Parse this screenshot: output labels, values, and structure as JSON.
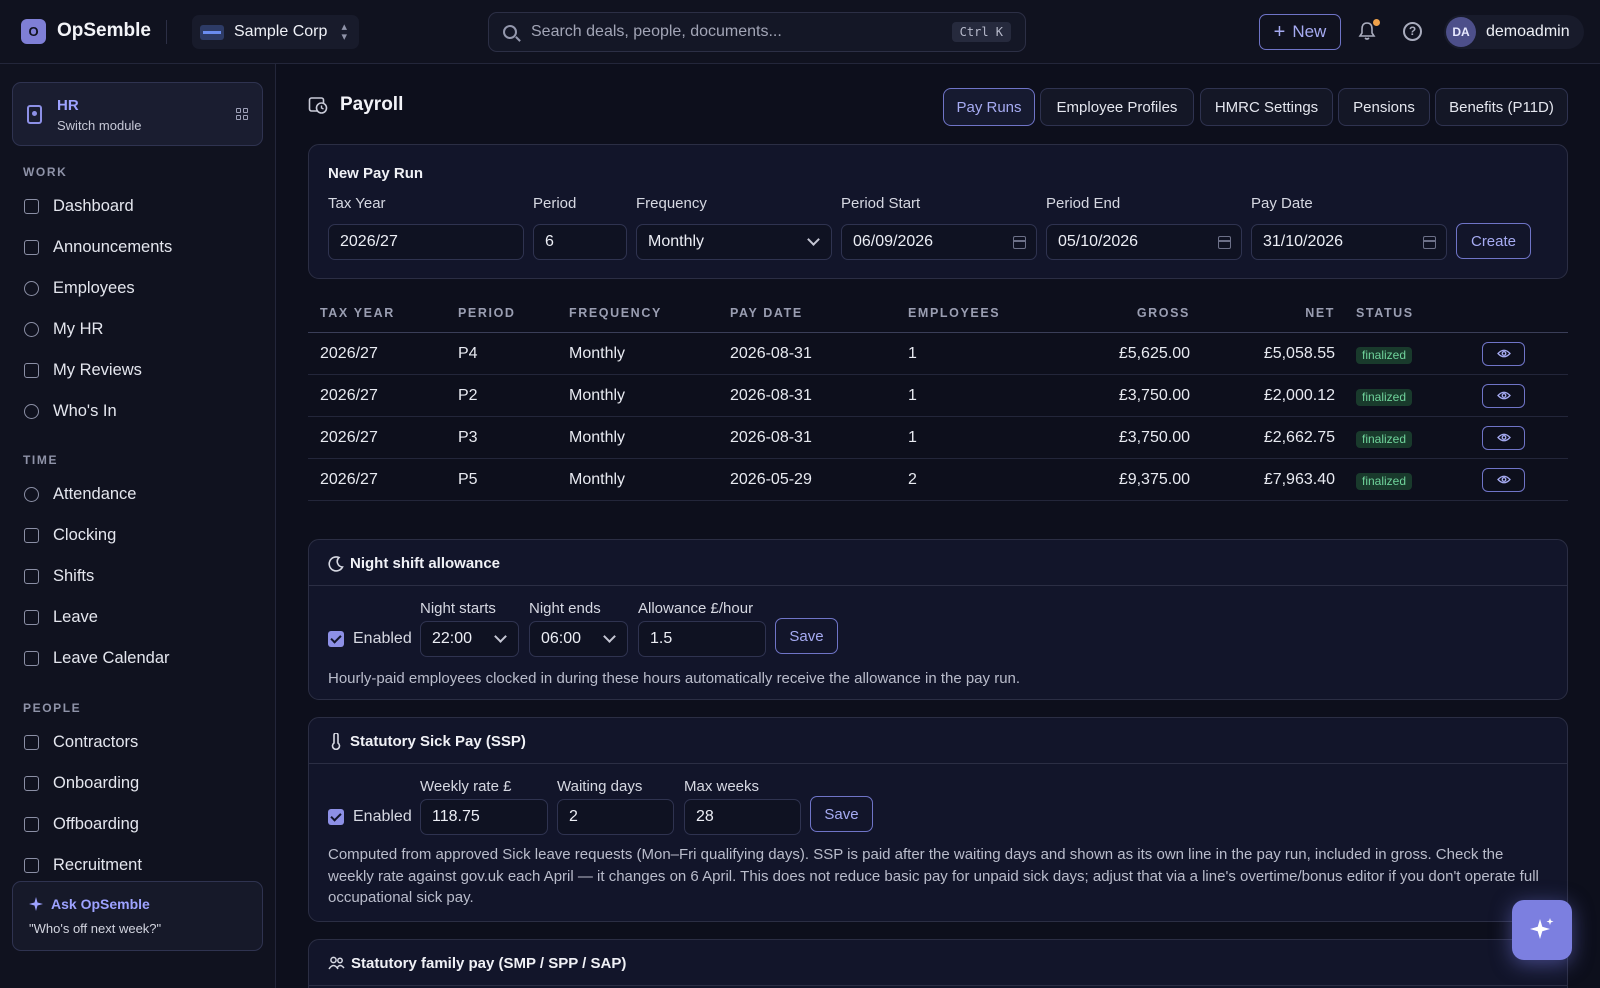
{
  "app": {
    "name": "OpSemble",
    "logo_letter": "O"
  },
  "org": {
    "name": "Sample Corp"
  },
  "search": {
    "placeholder": "Search deals, people, documents...",
    "shortcut": "Ctrl K"
  },
  "header": {
    "new_label": "New",
    "user_initials": "DA",
    "user_name": "demoadmin"
  },
  "module": {
    "title": "HR",
    "subtitle": "Switch module"
  },
  "sidebar": {
    "sections": [
      {
        "label": "WORK",
        "items": [
          "Dashboard",
          "Announcements",
          "Employees",
          "My HR",
          "My Reviews",
          "Who's In"
        ]
      },
      {
        "label": "TIME",
        "items": [
          "Attendance",
          "Clocking",
          "Shifts",
          "Leave",
          "Leave Calendar"
        ]
      },
      {
        "label": "PEOPLE",
        "items": [
          "Contractors",
          "Onboarding",
          "Offboarding",
          "Recruitment"
        ]
      }
    ]
  },
  "ask": {
    "title": "Ask OpSemble",
    "prompt": "\"Who's off next week?\""
  },
  "page": {
    "title": "Payroll"
  },
  "tabs": [
    {
      "label": "Pay Runs",
      "active": true
    },
    {
      "label": "Employee Profiles",
      "active": false
    },
    {
      "label": "HMRC Settings",
      "active": false
    },
    {
      "label": "Pensions",
      "active": false
    },
    {
      "label": "Benefits (P11D)",
      "active": false
    }
  ],
  "new_pay_run": {
    "title": "New Pay Run",
    "fields": {
      "tax_year": {
        "label": "Tax Year",
        "value": "2026/27"
      },
      "period": {
        "label": "Period",
        "value": "6"
      },
      "frequency": {
        "label": "Frequency",
        "value": "Monthly"
      },
      "period_start": {
        "label": "Period Start",
        "value": "06/09/2026"
      },
      "period_end": {
        "label": "Period End",
        "value": "05/10/2026"
      },
      "pay_date": {
        "label": "Pay Date",
        "value": "31/10/2026"
      }
    },
    "create_label": "Create"
  },
  "pay_runs_table": {
    "columns": [
      "TAX YEAR",
      "PERIOD",
      "FREQUENCY",
      "PAY DATE",
      "EMPLOYEES",
      "GROSS",
      "NET",
      "STATUS"
    ],
    "rows": [
      {
        "tax_year": "2026/27",
        "period": "P4",
        "frequency": "Monthly",
        "pay_date": "2026-08-31",
        "employees": "1",
        "gross": "£5,625.00",
        "net": "£5,058.55",
        "status": "finalized"
      },
      {
        "tax_year": "2026/27",
        "period": "P2",
        "frequency": "Monthly",
        "pay_date": "2026-08-31",
        "employees": "1",
        "gross": "£3,750.00",
        "net": "£2,000.12",
        "status": "finalized"
      },
      {
        "tax_year": "2026/27",
        "period": "P3",
        "frequency": "Monthly",
        "pay_date": "2026-08-31",
        "employees": "1",
        "gross": "£3,750.00",
        "net": "£2,662.75",
        "status": "finalized"
      },
      {
        "tax_year": "2026/27",
        "period": "P5",
        "frequency": "Monthly",
        "pay_date": "2026-05-29",
        "employees": "2",
        "gross": "£9,375.00",
        "net": "£7,963.40",
        "status": "finalized"
      }
    ]
  },
  "night_shift": {
    "title": "Night shift allowance",
    "enabled_label": "Enabled",
    "night_starts": {
      "label": "Night starts",
      "value": "22:00"
    },
    "night_ends": {
      "label": "Night ends",
      "value": "06:00"
    },
    "allowance": {
      "label": "Allowance £/hour",
      "value": "1.5"
    },
    "save_label": "Save",
    "hint": "Hourly-paid employees clocked in during these hours automatically receive the allowance in the pay run."
  },
  "ssp": {
    "title": "Statutory Sick Pay (SSP)",
    "enabled_label": "Enabled",
    "weekly_rate": {
      "label": "Weekly rate £",
      "value": "118.75"
    },
    "waiting_days": {
      "label": "Waiting days",
      "value": "2"
    },
    "max_weeks": {
      "label": "Max weeks",
      "value": "28"
    },
    "save_label": "Save",
    "hint": "Computed from approved Sick leave requests (Mon–Fri qualifying days). SSP is paid after the waiting days and shown as its own line in the pay run, included in gross. Check the weekly rate against gov.uk each April — it changes on 6 April. This does not reduce basic pay for unpaid sick days; adjust that via a line's overtime/bonus editor if you don't operate full occupational sick pay."
  },
  "family_pay": {
    "title": "Statutory family pay (SMP / SPP / SAP)"
  },
  "colors": {
    "accent": "#8d90e6",
    "background": "#0d0f1c",
    "success": "#6fd39b",
    "notification": "#f0a24a"
  }
}
